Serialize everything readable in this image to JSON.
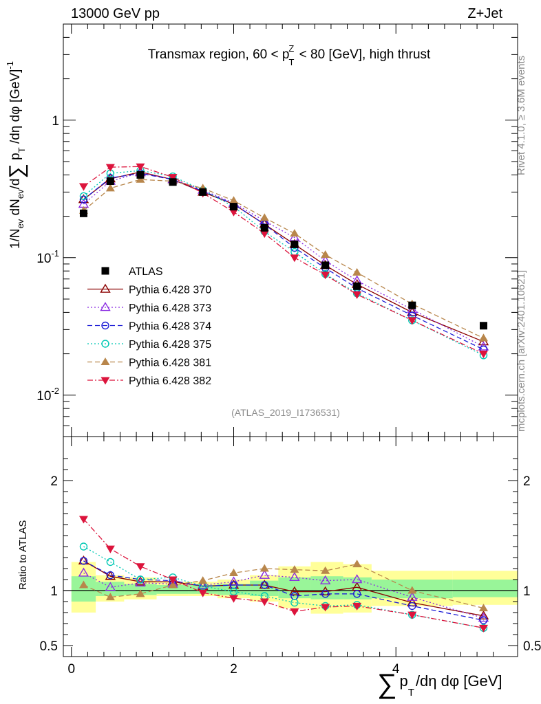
{
  "header": {
    "left": "13000 GeV pp",
    "right": "Z+Jet"
  },
  "side_labels": {
    "rivet": "Rivet 4.1.0, ≥ 3.6M events",
    "mcplots": "mcplots.cern.ch [arXiv:2401.10621]"
  },
  "chart_data": [
    {
      "type": "line",
      "panel": "main",
      "title": "Transmax region, 60 < p_T^Z < 80 [GeV], high thrust",
      "ylabel": "1/N_ev dN_ev/d∑p_T/dη dφ [GeV]^-1",
      "yscale": "log",
      "ylim": [
        0.005,
        5.0
      ],
      "xlim": [
        -0.1,
        5.5
      ],
      "y_tick_labels": [
        "10^-2",
        "10^-1",
        "1"
      ],
      "analysis_tag": "(ATLAS_2019_I1736531)",
      "x": [
        0.15,
        0.48,
        0.85,
        1.25,
        1.62,
        2.0,
        2.38,
        2.75,
        3.13,
        3.52,
        4.2,
        5.08
      ],
      "data": {
        "name": "ATLAS",
        "values": [
          0.21,
          0.36,
          0.4,
          0.355,
          0.3,
          0.235,
          0.165,
          0.125,
          0.088,
          0.062,
          0.045,
          0.032
        ]
      },
      "series": [
        {
          "name": "Pythia 6.428 370",
          "color": "#8b0000",
          "marker": "open-triangle-up",
          "line": "solid",
          "values": [
            0.265,
            0.375,
            0.42,
            0.37,
            0.3,
            0.245,
            0.175,
            0.125,
            0.088,
            0.064,
            0.04,
            0.0245
          ]
        },
        {
          "name": "Pythia 6.428 373",
          "color": "#8a2be2",
          "marker": "open-triangle-up",
          "line": "dotted",
          "values": [
            0.245,
            0.36,
            0.415,
            0.37,
            0.31,
            0.25,
            0.185,
            0.14,
            0.095,
            0.068,
            0.042,
            0.0225
          ]
        },
        {
          "name": "Pythia 6.428 374",
          "color": "#1c1cd6",
          "marker": "open-circle",
          "line": "dashed",
          "values": [
            0.265,
            0.38,
            0.41,
            0.37,
            0.305,
            0.245,
            0.175,
            0.118,
            0.084,
            0.06,
            0.038,
            0.0215
          ]
        },
        {
          "name": "Pythia 6.428 375",
          "color": "#00c8b4",
          "marker": "open-circle",
          "line": "dotted",
          "values": [
            0.28,
            0.41,
            0.43,
            0.39,
            0.31,
            0.235,
            0.155,
            0.11,
            0.076,
            0.055,
            0.035,
            0.0195
          ]
        },
        {
          "name": "Pythia 6.428 381",
          "color": "#b8864b",
          "marker": "filled-triangle-up",
          "line": "dashed",
          "values": [
            0.22,
            0.32,
            0.37,
            0.36,
            0.32,
            0.26,
            0.195,
            0.15,
            0.105,
            0.078,
            0.046,
            0.026
          ]
        },
        {
          "name": "Pythia 6.428 382",
          "color": "#dc143c",
          "marker": "filled-triangle-down",
          "line": "dashdot",
          "values": [
            0.33,
            0.455,
            0.46,
            0.385,
            0.295,
            0.215,
            0.15,
            0.1,
            0.075,
            0.054,
            0.035,
            0.02
          ]
        }
      ]
    },
    {
      "type": "line",
      "panel": "ratio",
      "ylabel": "Ratio to ATLAS",
      "xlabel": "∑p_T/dη dφ [GeV]",
      "ylim": [
        0.4,
        2.4
      ],
      "xlim": [
        -0.1,
        5.5
      ],
      "x_tick_labels": [
        "0",
        "2",
        "4"
      ],
      "y_tick_labels": [
        "0.5",
        "1",
        "2"
      ],
      "x": [
        0.15,
        0.48,
        0.85,
        1.25,
        1.62,
        2.0,
        2.38,
        2.75,
        3.13,
        3.52,
        4.2,
        5.08
      ],
      "bands": {
        "edges": [
          0,
          0.3,
          0.65,
          1.05,
          1.45,
          1.8,
          2.2,
          2.55,
          2.95,
          3.35,
          3.7,
          4.7,
          5.5
        ],
        "green_low": [
          0.9,
          0.95,
          0.96,
          0.97,
          0.97,
          0.96,
          0.95,
          0.93,
          0.92,
          0.92,
          0.93,
          0.94
        ],
        "green_high": [
          1.13,
          1.08,
          1.06,
          1.05,
          1.05,
          1.06,
          1.09,
          1.12,
          1.13,
          1.12,
          1.1,
          1.1
        ],
        "yellow_low": [
          0.8,
          0.9,
          0.92,
          0.95,
          0.95,
          0.93,
          0.9,
          0.84,
          0.79,
          0.8,
          0.86,
          0.87
        ],
        "yellow_high": [
          1.26,
          1.14,
          1.12,
          1.08,
          1.08,
          1.1,
          1.14,
          1.22,
          1.26,
          1.24,
          1.18,
          1.18
        ]
      },
      "series": [
        {
          "name": "Pythia 6.428 370",
          "values": [
            1.27,
            1.13,
            1.08,
            1.08,
            1.04,
            1.05,
            1.05,
            0.99,
            0.99,
            1.03,
            0.89,
            0.77
          ]
        },
        {
          "name": "Pythia 6.428 373",
          "values": [
            1.16,
            1.03,
            1.07,
            1.06,
            1.05,
            1.08,
            1.14,
            1.12,
            1.09,
            1.1,
            0.94,
            0.75
          ]
        },
        {
          "name": "Pythia 6.428 374",
          "values": [
            1.27,
            1.14,
            1.1,
            1.09,
            1.04,
            1.05,
            1.05,
            0.95,
            0.97,
            0.97,
            0.86,
            0.73
          ]
        },
        {
          "name": "Pythia 6.428 375",
          "values": [
            1.4,
            1.26,
            1.1,
            1.12,
            1.04,
            0.99,
            0.95,
            0.89,
            0.86,
            0.87,
            0.78,
            0.66
          ]
        },
        {
          "name": "Pythia 6.428 381",
          "values": [
            1.05,
            0.94,
            0.97,
            1.05,
            1.09,
            1.16,
            1.2,
            1.19,
            1.18,
            1.24,
            1.0,
            0.84
          ]
        },
        {
          "name": "Pythia 6.428 382",
          "values": [
            1.65,
            1.38,
            1.22,
            1.1,
            0.98,
            0.93,
            0.9,
            0.81,
            0.85,
            0.86,
            0.78,
            0.66
          ]
        }
      ]
    }
  ]
}
